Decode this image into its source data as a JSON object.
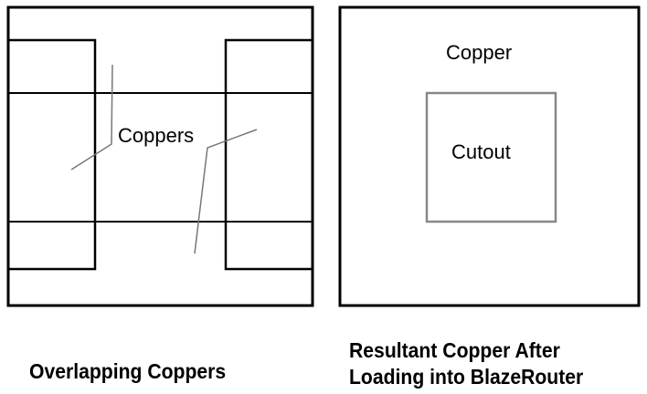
{
  "left_figure": {
    "label": "Coppers",
    "caption": "Overlapping Coppers"
  },
  "right_figure": {
    "outer_label": "Copper",
    "inner_label": "Cutout",
    "caption_line1": "Resultant Copper After",
    "caption_line2": "Loading into BlazeRouter"
  },
  "colors": {
    "line": "#000000",
    "leader": "#777777",
    "cutout_border": "#888888",
    "background": "#ffffff"
  }
}
